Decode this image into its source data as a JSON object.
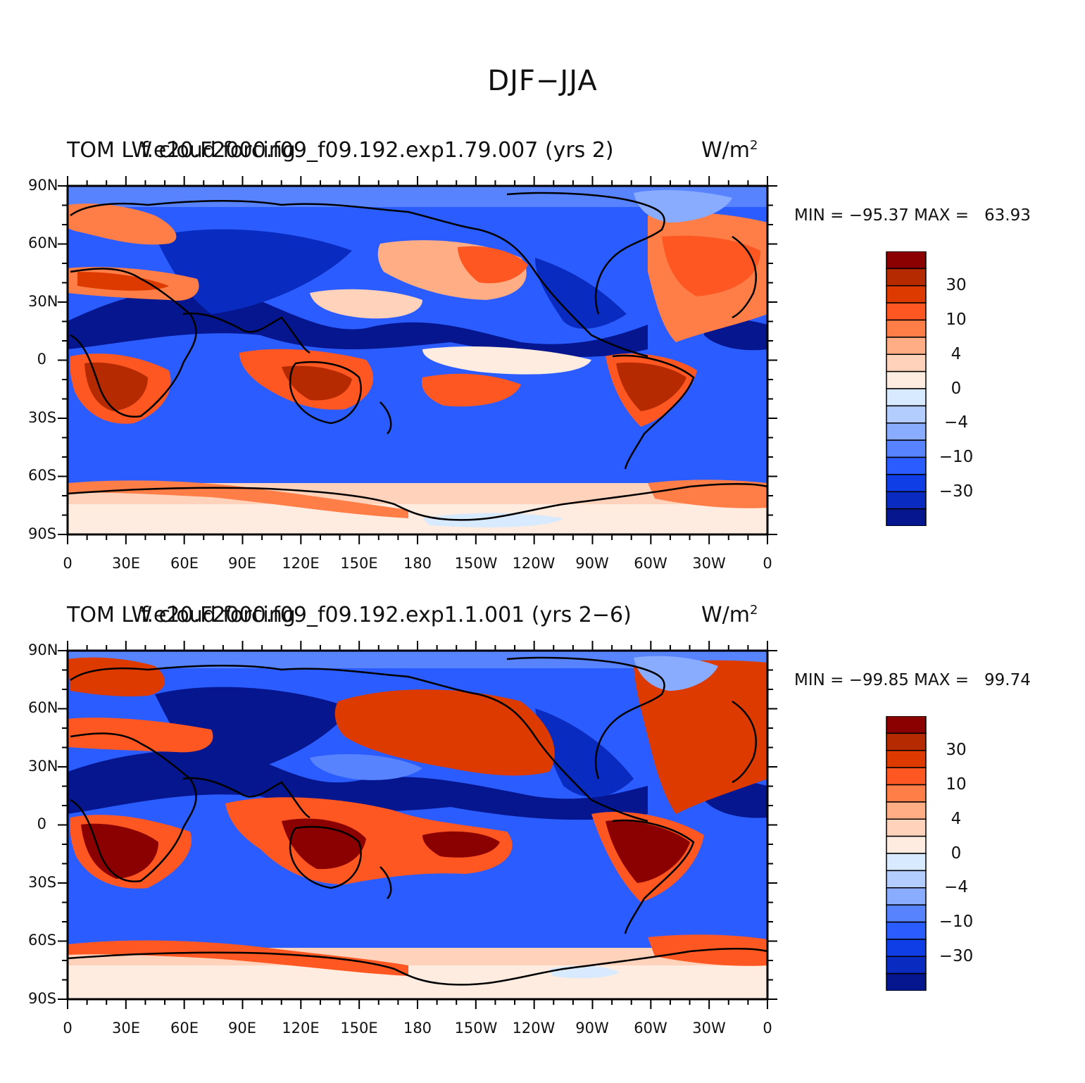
{
  "figure": {
    "title": "DJF−JJA"
  },
  "legend": {
    "colors": [
      "#8b0000",
      "#b52a00",
      "#dd3a00",
      "#ff5722",
      "#ff7d47",
      "#ffad85",
      "#ffd2bb",
      "#ffece0",
      "#d8eaff",
      "#b3cdff",
      "#89acff",
      "#5783ff",
      "#2b5cff",
      "#0f3ee6",
      "#0a2bbf",
      "#05168f"
    ],
    "labels": [
      "30",
      "10",
      "4",
      "0",
      "−4",
      "−10",
      "−30"
    ]
  },
  "axes": {
    "y_ticks": [
      "90N",
      "60N",
      "30N",
      "0",
      "30S",
      "60S",
      "90S"
    ],
    "x_ticks": [
      "0",
      "30E",
      "60E",
      "90E",
      "120E",
      "150E",
      "180",
      "150W",
      "120W",
      "90W",
      "60W",
      "30W",
      "0"
    ]
  },
  "panels": [
    {
      "title_left": "TOM LW cloud forcing",
      "title_center": "f.e20.F2000.f09_f09.192.exp1.79.007 (yrs 2)",
      "units": "W/m",
      "units_sup": "2",
      "min_label": "MIN = −95.37",
      "max_label": "MAX =   63.93",
      "field_min": -95.37,
      "field_max": 63.93
    },
    {
      "title_left": "TOM LW cloud forcing",
      "title_center": "f.e20.F2000.f09_f09.192.exp1.1.001 (yrs 2−6)",
      "units": "W/m",
      "units_sup": "2",
      "min_label": "MIN = −99.85",
      "max_label": "MAX =   99.74",
      "field_min": -99.85,
      "field_max": 99.74
    }
  ]
}
